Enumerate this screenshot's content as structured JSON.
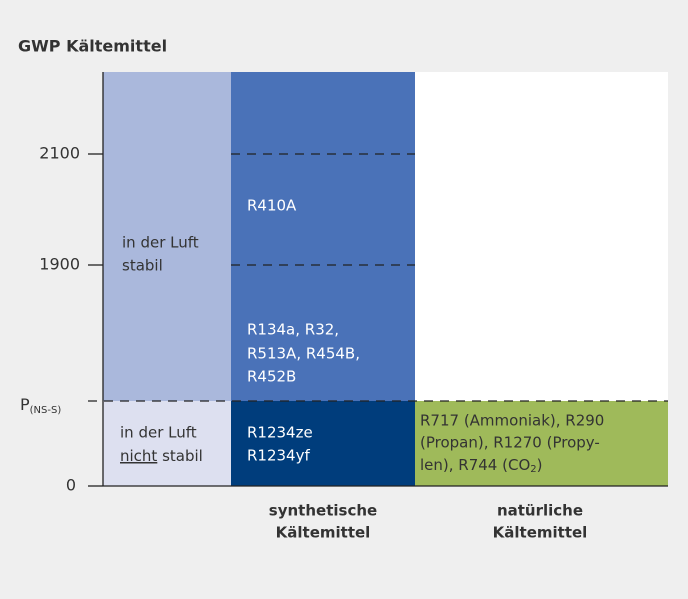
{
  "title": "GWP Kältemittel",
  "axis": {
    "ticks": [
      "2100",
      "1900",
      {
        "main": "P",
        "sub": "(NS-S)"
      },
      "0"
    ]
  },
  "cells": {
    "stable_air": [
      "in der Luft",
      "stabil"
    ],
    "unstable_air": {
      "underlined": "nicht",
      "lines": [
        "in der Luft",
        " stabil"
      ]
    },
    "synthetic_high": "R410A",
    "synthetic_mid": [
      "R134a, R32,",
      "R513A, R454B,",
      "R452B"
    ],
    "synthetic_low": [
      "R1234ze",
      "R1234yf"
    ],
    "natural_low": {
      "lines": [
        "R717 (Ammoniak), R290",
        "(Propan), R1270 (Propy-",
        "len), R744 (CO"
      ],
      "sub": "2",
      "close": ")"
    }
  },
  "columns": [
    [
      "synthetische",
      "Kältemittel"
    ],
    [
      "natürliche",
      "Kältemittel"
    ]
  ]
}
